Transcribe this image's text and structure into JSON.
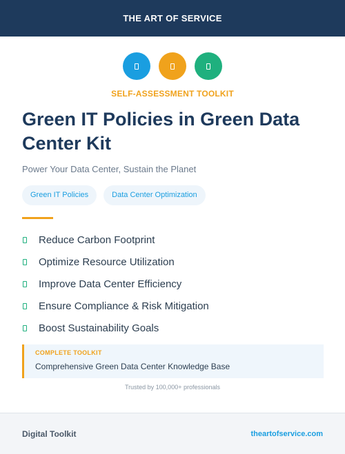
{
  "header": {
    "brand": "THE ART OF SERVICE"
  },
  "hero_icons": [
    {
      "icon": "document-icon",
      "color": "#1a9ee0"
    },
    {
      "icon": "document-icon",
      "color": "#f0a21c"
    },
    {
      "icon": "document-icon",
      "color": "#1fb07e"
    }
  ],
  "eyebrow": "SELF-ASSESSMENT TOOLKIT",
  "title": "Green IT Policies in Green Data Center Kit",
  "subtitle": "Power Your Data Center, Sustain the Planet",
  "tags": [
    "Green IT Policies",
    "Data Center Optimization"
  ],
  "features": [
    "Reduce Carbon Footprint",
    "Optimize Resource Utilization",
    "Improve Data Center Efficiency",
    "Ensure Compliance & Risk Mitigation",
    "Boost Sustainability Goals"
  ],
  "callout": {
    "label": "COMPLETE TOOLKIT",
    "text": "Comprehensive Green Data Center Knowledge Base"
  },
  "trust": "Trusted by 100,000+ professionals",
  "footer": {
    "left": "Digital Toolkit",
    "right": "theartofservice.com"
  },
  "colors": {
    "navy": "#1e3a5c",
    "blue": "#1a9ee0",
    "orange": "#f0a21c",
    "green": "#1fb07e"
  }
}
